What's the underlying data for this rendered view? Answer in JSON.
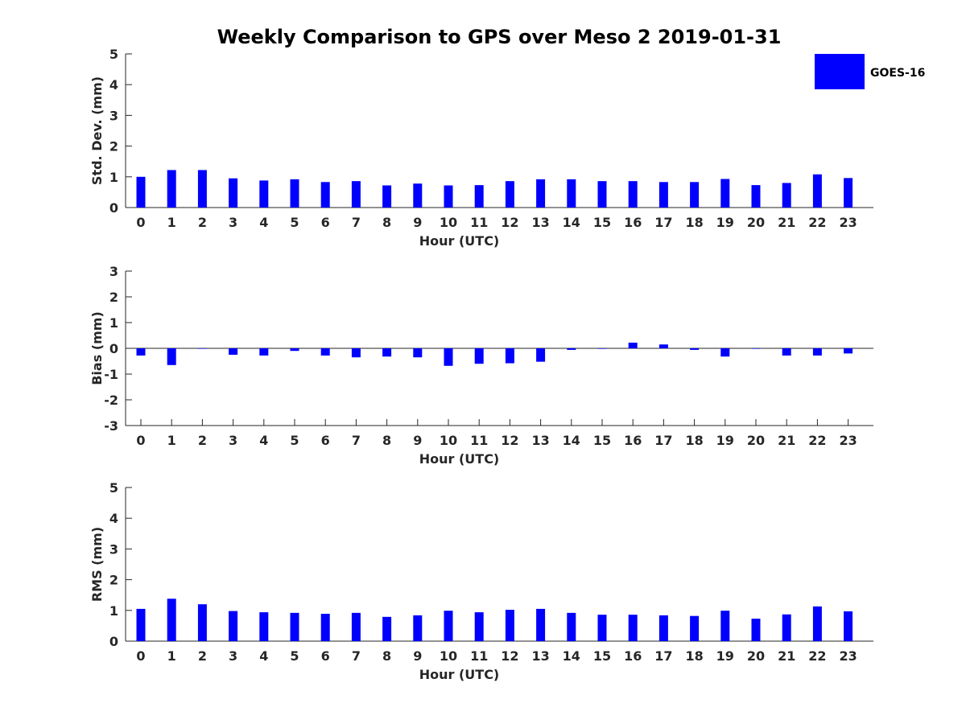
{
  "figure": {
    "title": "Weekly Comparison to GPS over Meso 2 2019-01-31",
    "bar_color": "#0000ff",
    "axis_color": "#262626"
  },
  "legend": {
    "label": "GOES-16",
    "placement": "top-right"
  },
  "chart_data": [
    {
      "type": "bar",
      "title": "Weekly Comparison to GPS over Meso 2 2019-01-31",
      "xlabel": "Hour (UTC)",
      "ylabel": "Std. Dev. (mm)",
      "ylim": [
        0,
        5
      ],
      "yticks": [
        0,
        1,
        2,
        3,
        4,
        5
      ],
      "categories": [
        "0",
        "1",
        "2",
        "3",
        "4",
        "5",
        "6",
        "7",
        "8",
        "9",
        "10",
        "11",
        "12",
        "13",
        "14",
        "15",
        "16",
        "17",
        "18",
        "19",
        "20",
        "21",
        "22",
        "23"
      ],
      "series": [
        {
          "name": "GOES-16",
          "values": [
            1.0,
            1.22,
            1.22,
            0.95,
            0.88,
            0.92,
            0.83,
            0.86,
            0.72,
            0.78,
            0.72,
            0.73,
            0.86,
            0.92,
            0.92,
            0.86,
            0.86,
            0.83,
            0.83,
            0.93,
            0.73,
            0.8,
            1.08,
            0.96
          ]
        }
      ]
    },
    {
      "type": "bar",
      "xlabel": "Hour (UTC)",
      "ylabel": "Bias (mm)",
      "ylim": [
        -3,
        3
      ],
      "yticks": [
        -3,
        -2,
        -1,
        0,
        1,
        2,
        3
      ],
      "zero_line": true,
      "categories": [
        "0",
        "1",
        "2",
        "3",
        "4",
        "5",
        "6",
        "7",
        "8",
        "9",
        "10",
        "11",
        "12",
        "13",
        "14",
        "15",
        "16",
        "17",
        "18",
        "19",
        "20",
        "21",
        "22",
        "23"
      ],
      "series": [
        {
          "name": "GOES-16",
          "values": [
            -0.28,
            -0.65,
            -0.01,
            -0.25,
            -0.28,
            -0.1,
            -0.28,
            -0.35,
            -0.32,
            -0.35,
            -0.68,
            -0.6,
            -0.58,
            -0.52,
            -0.06,
            -0.02,
            0.22,
            0.15,
            -0.06,
            -0.32,
            -0.01,
            -0.28,
            -0.28,
            -0.2
          ]
        }
      ]
    },
    {
      "type": "bar",
      "xlabel": "Hour (UTC)",
      "ylabel": "RMS (mm)",
      "ylim": [
        0,
        5
      ],
      "yticks": [
        0,
        1,
        2,
        3,
        4,
        5
      ],
      "categories": [
        "0",
        "1",
        "2",
        "3",
        "4",
        "5",
        "6",
        "7",
        "8",
        "9",
        "10",
        "11",
        "12",
        "13",
        "14",
        "15",
        "16",
        "17",
        "18",
        "19",
        "20",
        "21",
        "22",
        "23"
      ],
      "series": [
        {
          "name": "GOES-16",
          "values": [
            1.05,
            1.38,
            1.2,
            0.98,
            0.94,
            0.92,
            0.89,
            0.92,
            0.79,
            0.84,
            0.99,
            0.94,
            1.02,
            1.05,
            0.92,
            0.86,
            0.86,
            0.84,
            0.82,
            0.99,
            0.73,
            0.87,
            1.13,
            0.97
          ]
        }
      ]
    }
  ]
}
